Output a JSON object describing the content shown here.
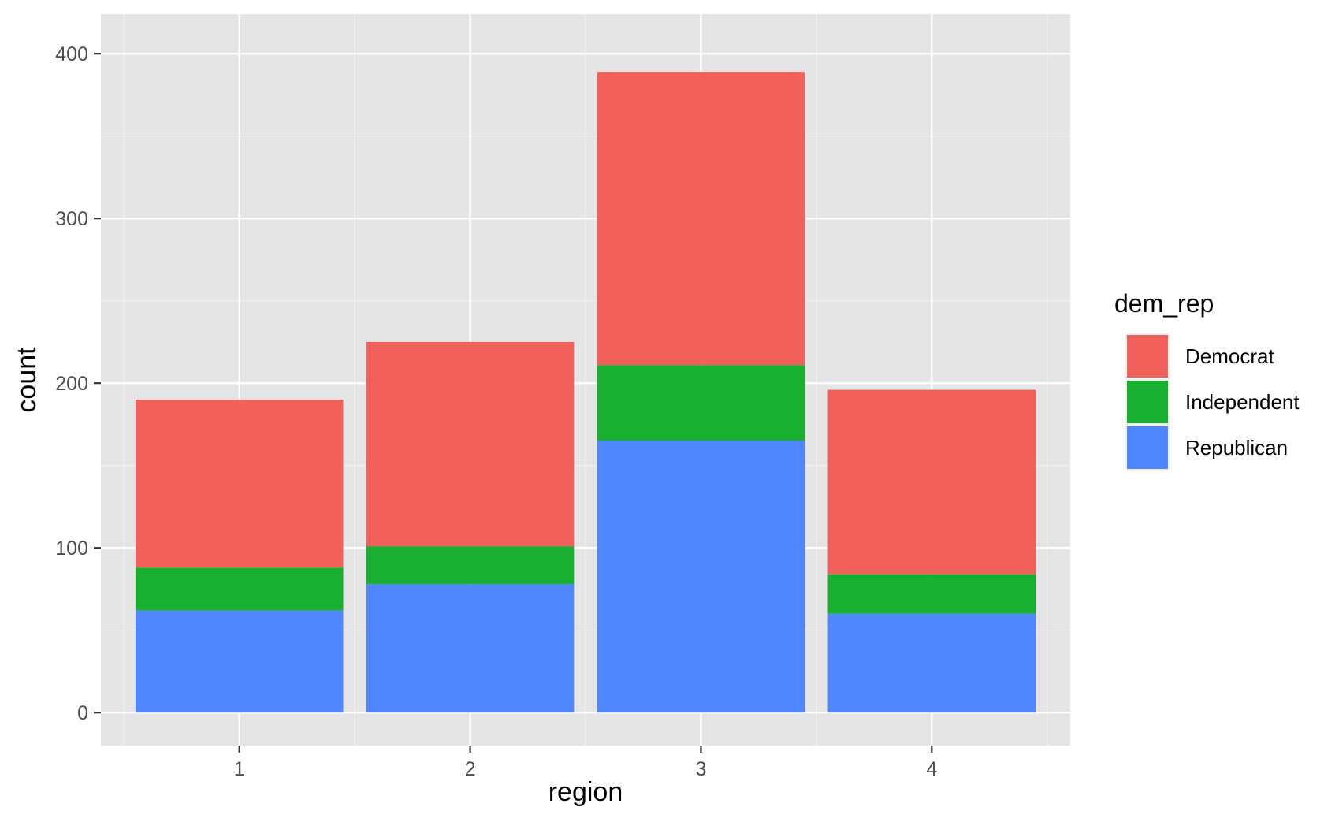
{
  "chart_data": {
    "type": "bar",
    "stacked": true,
    "xlabel": "region",
    "ylabel": "count",
    "categories": [
      "1",
      "2",
      "3",
      "4"
    ],
    "ylim": [
      -20,
      424
    ],
    "yticks": [
      0,
      100,
      200,
      300,
      400
    ],
    "y_minor_ticks": [
      50,
      150,
      250,
      350
    ],
    "grid": true,
    "legend": {
      "title": "dem_rep",
      "position": "right"
    },
    "series": [
      {
        "name": "Republican",
        "color": "#5087FF",
        "values": [
          62,
          78,
          165,
          60
        ]
      },
      {
        "name": "Independent",
        "color": "#19AF31",
        "values": [
          26,
          23,
          46,
          24
        ]
      },
      {
        "name": "Democrat",
        "color": "#F2605C",
        "values": [
          102,
          124,
          178,
          112
        ]
      }
    ],
    "legend_order": [
      "Democrat",
      "Independent",
      "Republican"
    ],
    "colors": {
      "panel": "#E5E5E5",
      "grid_major": "#FFFFFF",
      "grid_minor": "#F2F2F2",
      "axis_text": "#4D4D4D",
      "title_text": "#000000"
    }
  }
}
